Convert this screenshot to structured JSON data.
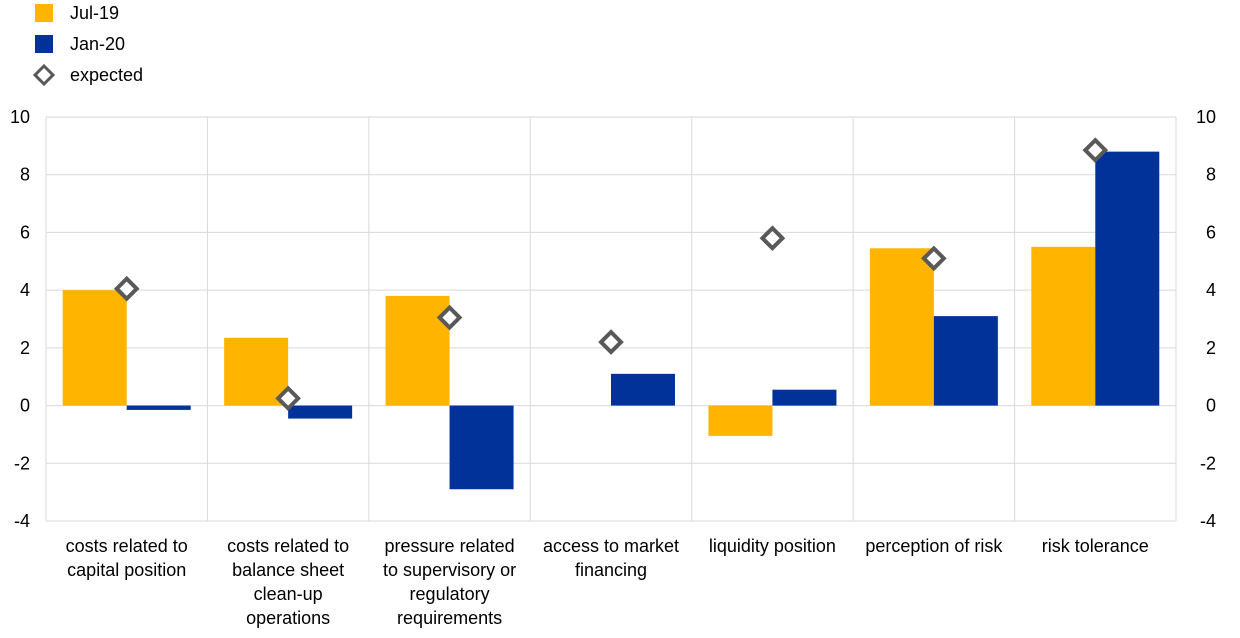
{
  "chart_data": {
    "type": "bar",
    "categories": [
      [
        "costs related to",
        "capital position"
      ],
      [
        "costs related to",
        "balance sheet",
        "clean-up",
        "operations"
      ],
      [
        "pressure related",
        "to supervisory or",
        "regulatory",
        "requirements"
      ],
      [
        "access to market",
        "financing"
      ],
      [
        "liquidity position"
      ],
      [
        "perception of risk"
      ],
      [
        "risk tolerance"
      ]
    ],
    "series": [
      {
        "name": "Jul-19",
        "color": "#FFB400",
        "values": [
          4.0,
          2.35,
          3.8,
          0.0,
          -1.05,
          5.45,
          5.5
        ]
      },
      {
        "name": "Jan-20",
        "color": "#003299",
        "values": [
          -0.15,
          -0.45,
          -2.9,
          1.1,
          0.55,
          3.1,
          8.8
        ]
      }
    ],
    "markers": {
      "name": "expected",
      "values": [
        4.05,
        0.25,
        3.05,
        2.2,
        5.8,
        5.1,
        8.85
      ]
    },
    "ylim": [
      -4,
      10
    ],
    "yticks": [
      -4,
      -2,
      0,
      2,
      4,
      6,
      8,
      10
    ],
    "grid": true,
    "legend_position": "top-left",
    "dual_axis_labels": true
  }
}
